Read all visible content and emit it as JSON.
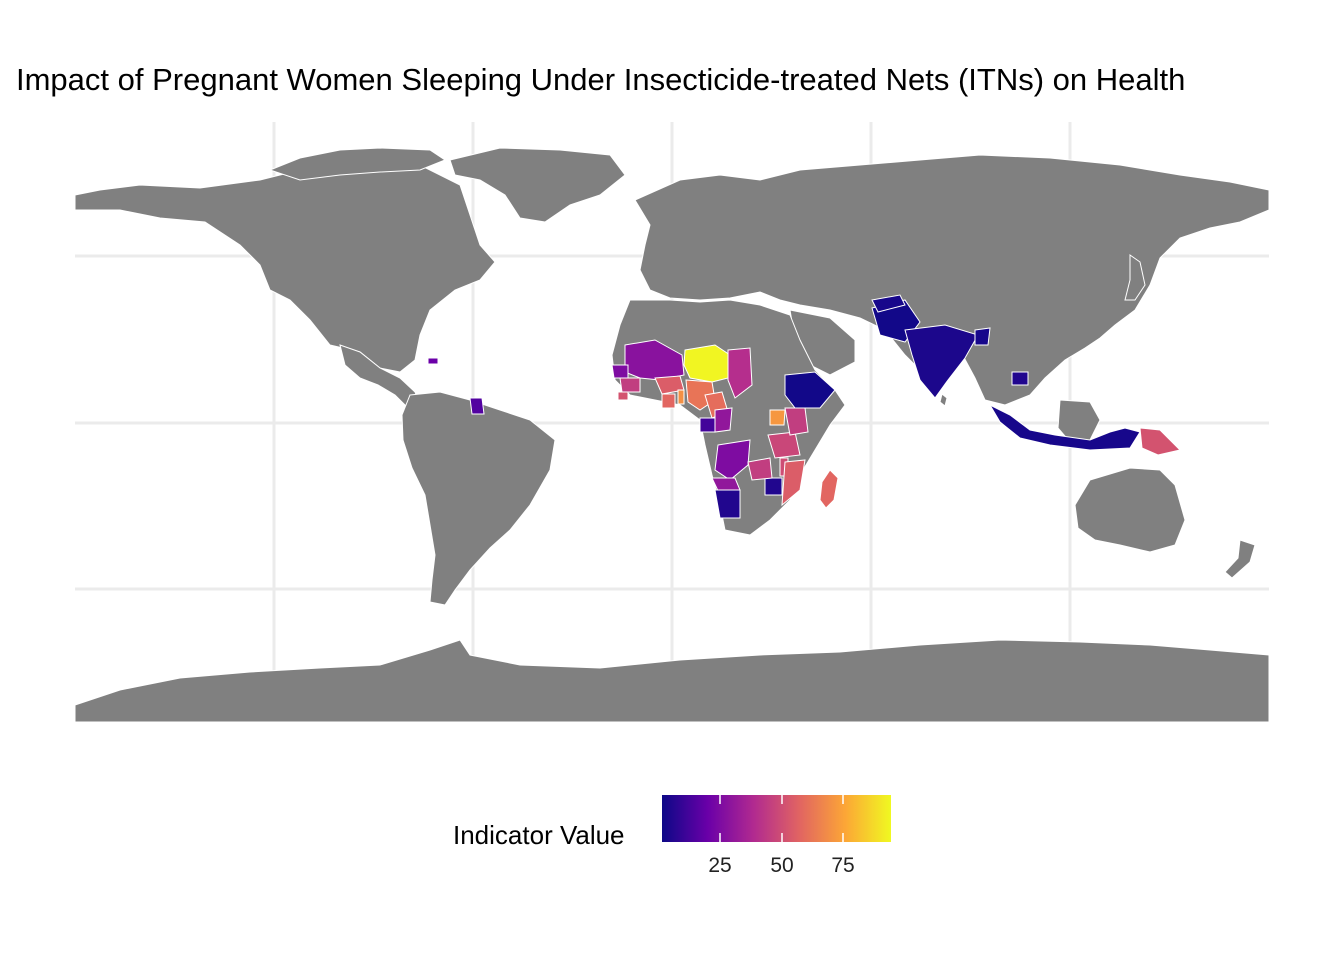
{
  "title": "Impact of Pregnant Women Sleeping Under Insecticide-treated Nets (ITNs) on Health",
  "colors": {
    "background": "#ffffff",
    "land_no_data": "#808080",
    "borders": "#ffffff",
    "grid": "#ebebeb",
    "scale": [
      "#0d0887",
      "#6a00a8",
      "#b12a90",
      "#e16462",
      "#fca636",
      "#f0f921"
    ]
  },
  "legend": {
    "title": "Indicator Value",
    "ticks": [
      "25",
      "50",
      "75"
    ],
    "range": [
      1,
      95
    ],
    "scale": "plasma"
  },
  "chart_data": {
    "type": "choropleth",
    "value_label": "Indicator Value",
    "regions": [
      {
        "name": "Niger",
        "value": 94
      },
      {
        "name": "Mali",
        "value": 28
      },
      {
        "name": "Chad",
        "value": 40
      },
      {
        "name": "Burkina Faso",
        "value": 55
      },
      {
        "name": "Nigeria",
        "value": 62
      },
      {
        "name": "Senegal",
        "value": 25
      },
      {
        "name": "Guinea",
        "value": 45
      },
      {
        "name": "Sierra Leone",
        "value": 52
      },
      {
        "name": "Liberia",
        "value": 60
      },
      {
        "name": "Ghana",
        "value": 58
      },
      {
        "name": "Togo",
        "value": 48
      },
      {
        "name": "Benin",
        "value": 70
      },
      {
        "name": "Cameroon",
        "value": 60
      },
      {
        "name": "Gabon",
        "value": 12
      },
      {
        "name": "Equatorial Guinea",
        "value": 10
      },
      {
        "name": "Republic of the Congo",
        "value": 30
      },
      {
        "name": "Democratic Republic of the Congo",
        "value": 25
      },
      {
        "name": "Angola",
        "value": 30
      },
      {
        "name": "Namibia",
        "value": 5
      },
      {
        "name": "Zimbabwe",
        "value": 5
      },
      {
        "name": "Zambia",
        "value": 45
      },
      {
        "name": "Malawi",
        "value": 50
      },
      {
        "name": "Mozambique",
        "value": 55
      },
      {
        "name": "Madagascar",
        "value": 58
      },
      {
        "name": "Tanzania",
        "value": 48
      },
      {
        "name": "Kenya",
        "value": 45
      },
      {
        "name": "Uganda",
        "value": 72
      },
      {
        "name": "Rwanda",
        "value": 35
      },
      {
        "name": "Burundi",
        "value": 40
      },
      {
        "name": "Ethiopia",
        "value": 2
      },
      {
        "name": "Afghanistan",
        "value": 3
      },
      {
        "name": "Pakistan",
        "value": 2
      },
      {
        "name": "India",
        "value": 4
      },
      {
        "name": "Bangladesh",
        "value": 3
      },
      {
        "name": "Cambodia",
        "value": 5
      },
      {
        "name": "Indonesia",
        "value": 3
      },
      {
        "name": "Timor-Leste",
        "value": 5
      },
      {
        "name": "Papua New Guinea",
        "value": 52
      },
      {
        "name": "Guyana",
        "value": 15
      },
      {
        "name": "Haiti",
        "value": 20
      }
    ]
  }
}
